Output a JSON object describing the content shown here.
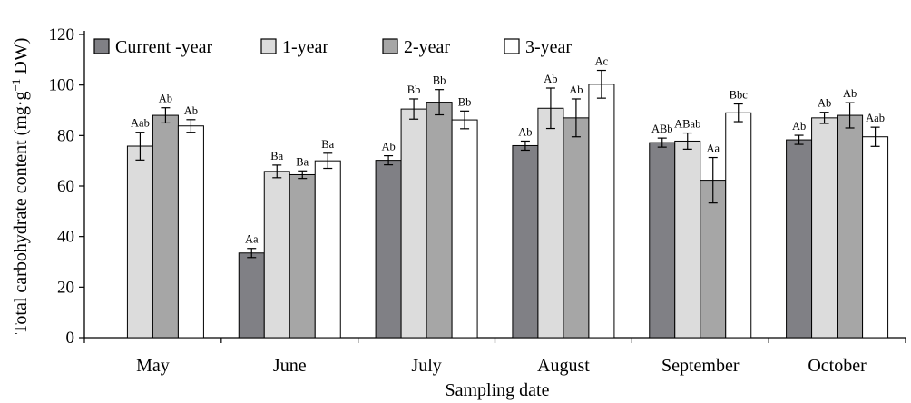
{
  "chart_data": {
    "type": "bar",
    "ylabel": "Total carbohydrate content (mg·g",
    "ylabel_sup": "−1",
    "ylabel_tail": " DW)",
    "xlabel": "Sampling date",
    "ylim": [
      0,
      120
    ],
    "yticks": [
      0,
      20,
      40,
      60,
      80,
      100,
      120
    ],
    "legend_position": "top-left",
    "grid": false,
    "categories": [
      "May",
      "June",
      "July",
      "August",
      "September",
      "October"
    ],
    "series": [
      {
        "name": "Current -year",
        "color": "#808085",
        "values": [
          null,
          33.5,
          70.2,
          76.0,
          77.2,
          78.3
        ],
        "errors": [
          null,
          1.8,
          1.8,
          1.8,
          1.8,
          1.8
        ],
        "labels": [
          "",
          "Aa",
          "Ab",
          "Ab",
          "ABb",
          "Ab"
        ]
      },
      {
        "name": "1-year",
        "color": "#dcdcdc",
        "values": [
          75.8,
          65.8,
          90.5,
          90.8,
          77.8,
          87.0
        ],
        "errors": [
          5.5,
          2.5,
          4.0,
          8.0,
          3.2,
          2.2
        ],
        "labels": [
          "Aab",
          "Ba",
          "Bb",
          "Ab",
          "ABab",
          "Ab"
        ]
      },
      {
        "name": "2-year",
        "color": "#a6a6a6",
        "values": [
          88.0,
          64.5,
          93.2,
          87.0,
          62.3,
          88.0
        ],
        "errors": [
          3.0,
          1.5,
          5.0,
          7.5,
          9.0,
          5.0
        ],
        "labels": [
          "Ab",
          "Ba",
          "Bb",
          "Ab",
          "Aa",
          "Ab"
        ]
      },
      {
        "name": "3-year",
        "color": "#ffffff",
        "values": [
          83.8,
          70.0,
          86.2,
          100.3,
          89.0,
          79.5
        ],
        "errors": [
          2.5,
          3.0,
          3.5,
          5.5,
          3.5,
          3.8
        ],
        "labels": [
          "Ab",
          "Ba",
          "Bb",
          "Ac",
          "Bbc",
          "Aab"
        ]
      }
    ]
  }
}
